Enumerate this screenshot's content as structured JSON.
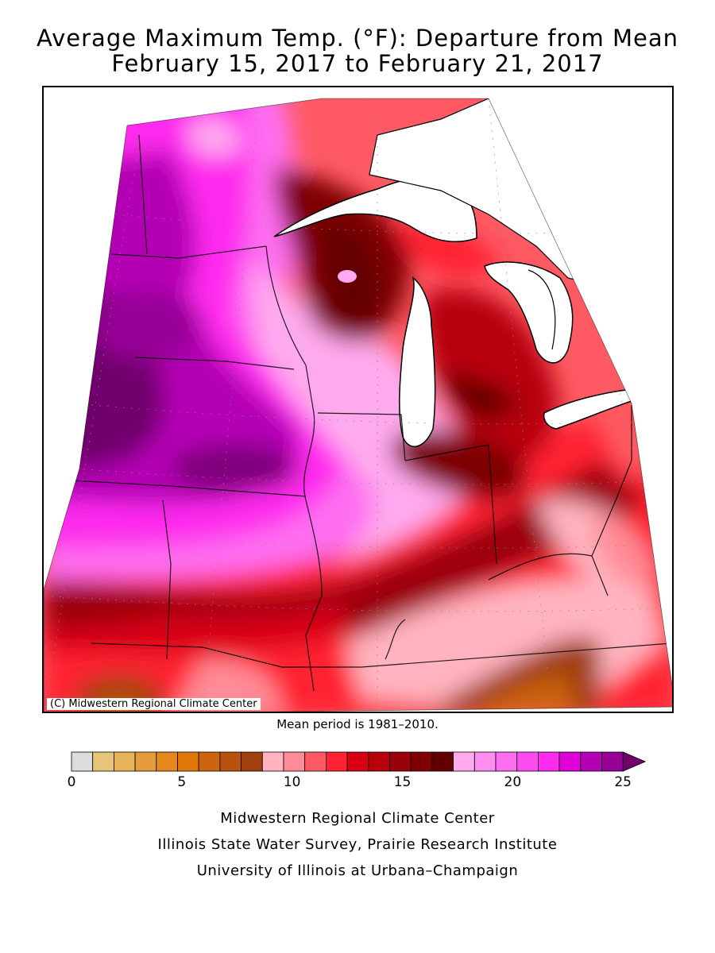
{
  "title_line1": "Average Maximum Temp. (°F): Departure from Mean",
  "title_line2": "February 15, 2017 to February 21, 2017",
  "copyright": "(C) Midwestern Regional Climate Center",
  "mean_period": "Mean period is 1981–2010.",
  "legend": {
    "ticks": [
      "0",
      "5",
      "10",
      "15",
      "20",
      "25"
    ],
    "colors": [
      "#dcdcdc",
      "#e8c476",
      "#e6b25a",
      "#e59c3a",
      "#e4881e",
      "#e07508",
      "#cc6410",
      "#b8520e",
      "#a0400c",
      "#ffb4c0",
      "#ff8c96",
      "#ff5a64",
      "#ff2230",
      "#d80012",
      "#b8000c",
      "#9c0008",
      "#7e0004",
      "#620000",
      "#ffaaee",
      "#ff8ef0",
      "#ff6ef0",
      "#ff4cf2",
      "#ff2cee",
      "#e000d8",
      "#b400b4",
      "#960096"
    ],
    "overflow_color": "#70006c"
  },
  "credits": [
    "Midwestern Regional Climate Center",
    "Illinois State Water Survey, Prairie Research Institute",
    "University of Illinois at Urbana–Champaign"
  ]
}
